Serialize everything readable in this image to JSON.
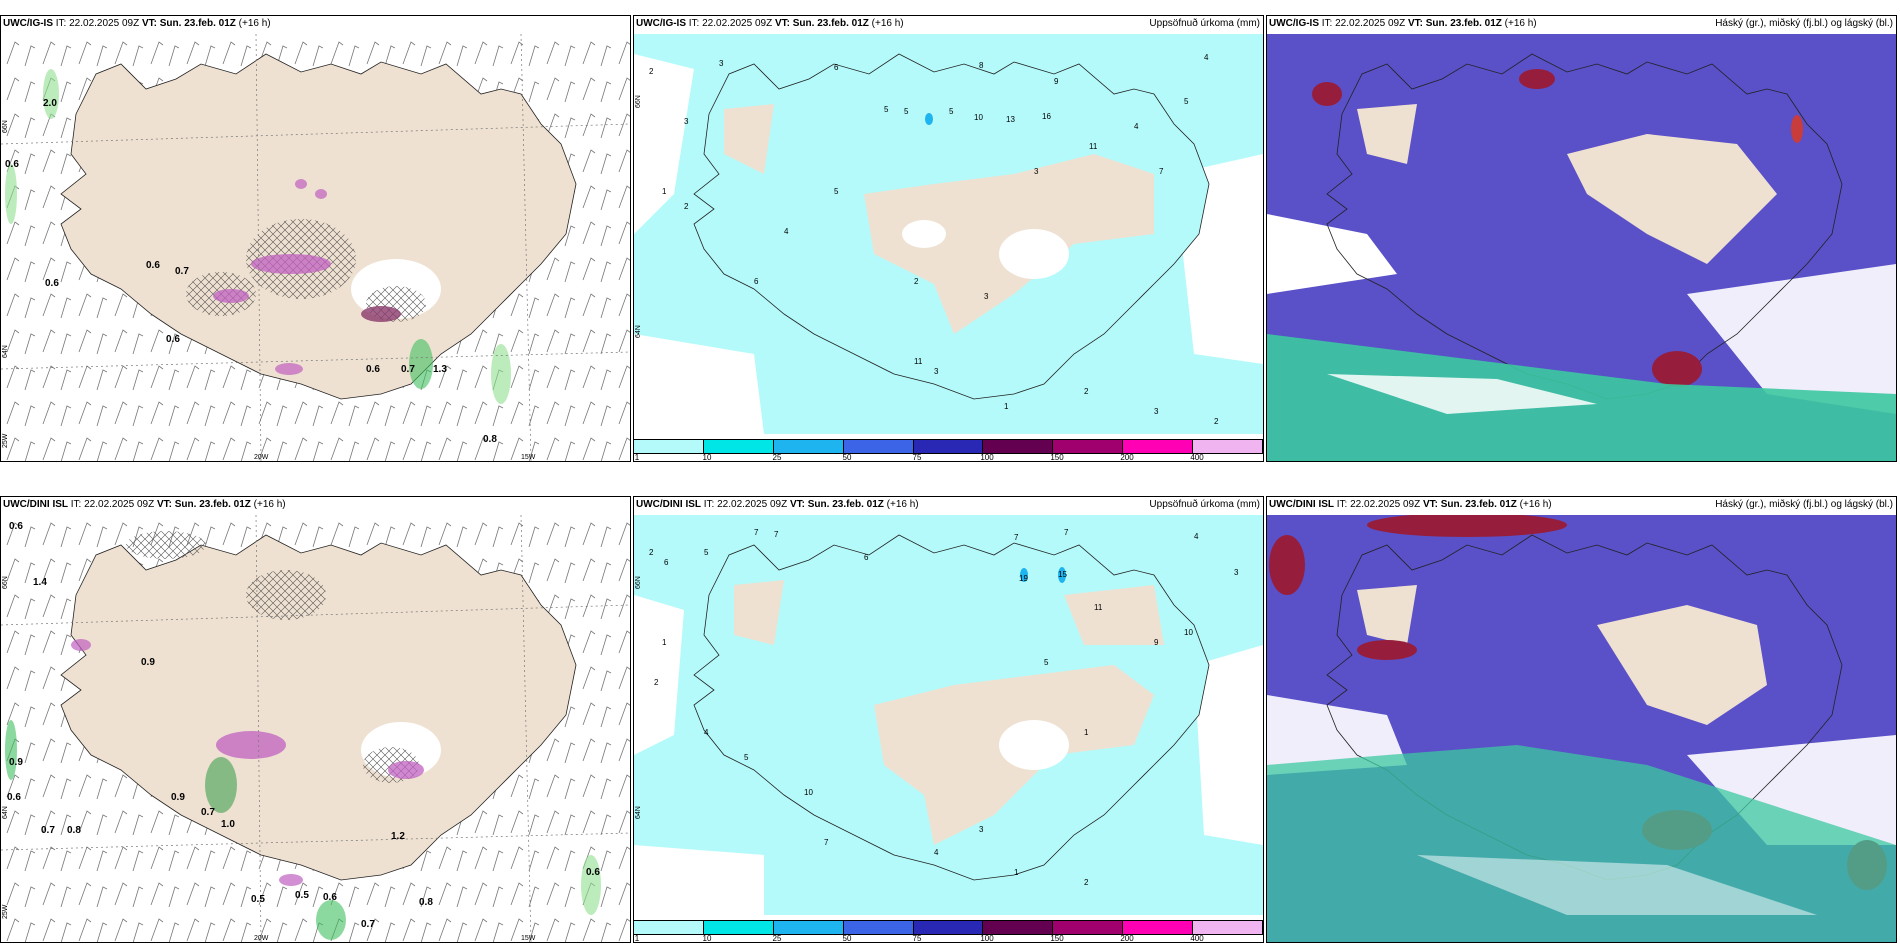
{
  "panels": [
    {
      "id": "ig-wind",
      "model": "UWC/IG-IS",
      "it_label": "IT:",
      "it": "22.02.2025 09Z",
      "vt_label": "VT:",
      "vt": "Sun. 23.feb. 01Z",
      "lead": "(+16 h)",
      "legend_title": "",
      "type": "wind"
    },
    {
      "id": "ig-precip",
      "model": "UWC/IG-IS",
      "it_label": "IT:",
      "it": "22.02.2025 09Z",
      "vt_label": "VT:",
      "vt": "Sun. 23.feb. 01Z",
      "lead": "(+16 h)",
      "legend_title": "Uppsöfnuð úrkoma (mm)",
      "type": "precip"
    },
    {
      "id": "ig-cloud",
      "model": "UWC/IG-IS",
      "it_label": "IT:",
      "it": "22.02.2025 09Z",
      "vt_label": "VT:",
      "vt": "Sun. 23.feb. 01Z",
      "lead": "(+16 h)",
      "legend_title": "Háský (gr.), miðský (fj.bl.) og lágský (bl.)",
      "type": "cloud"
    },
    {
      "id": "dini-wind",
      "model": "UWC/DINI ISL",
      "it_label": "IT:",
      "it": "22.02.2025 09Z",
      "vt_label": "VT:",
      "vt": "Sun. 23.feb. 01Z",
      "lead": "(+16 h)",
      "legend_title": "",
      "type": "wind"
    },
    {
      "id": "dini-precip",
      "model": "UWC/DINI ISL",
      "it_label": "IT:",
      "it": "22.02.2025 09Z",
      "vt_label": "VT:",
      "vt": "Sun. 23.feb. 01Z",
      "lead": "(+16 h)",
      "legend_title": "Uppsöfnuð úrkoma (mm)",
      "type": "precip"
    },
    {
      "id": "dini-cloud",
      "model": "UWC/DINI ISL",
      "it_label": "IT:",
      "it": "22.02.2025 09Z",
      "vt_label": "VT:",
      "vt": "Sun. 23.feb. 01Z",
      "lead": "(+16 h)",
      "legend_title": "Háský (gr.), miðský (fj.bl.) og lágský (bl.)",
      "type": "cloud"
    }
  ],
  "lat_labels": {
    "n66": "66N",
    "n64": "64N",
    "w25": "25W",
    "w20": "20W",
    "w15": "15W"
  },
  "colorbar": {
    "colors": [
      "#b4fafa",
      "#00e6e6",
      "#1eb4f0",
      "#3c64e6",
      "#2828b4",
      "#640050",
      "#a0006e",
      "#ff00b4",
      "#f0b4f0"
    ],
    "ticks": [
      "1",
      "10",
      "25",
      "50",
      "75",
      "100",
      "150",
      "200",
      "400"
    ]
  },
  "wind_labels_ig": [
    "2.0",
    "0.6",
    "0.6",
    "0.7",
    "0.6",
    "0.6",
    "0.6",
    "0.7",
    "1.3",
    "0.8"
  ],
  "wind_labels_dini": [
    "0.6",
    "1.4",
    "0.9",
    "0.9",
    "0.6",
    "0.9",
    "0.7",
    "0.7",
    "0.8",
    "1.2",
    "0.5",
    "0.5",
    "0.6",
    "0.8",
    "0.7",
    "0.6",
    "1.0"
  ],
  "precip_nums_ig": [
    "2",
    "3",
    "6",
    "8",
    "4",
    "3",
    "5",
    "5",
    "5",
    "10",
    "13",
    "16",
    "9",
    "11",
    "5",
    "4",
    "3",
    "1",
    "2",
    "7",
    "5",
    "4",
    "6",
    "2",
    "3",
    "11",
    "3",
    "1",
    "2",
    "2",
    "3"
  ],
  "precip_nums_dini": [
    "2",
    "6",
    "5",
    "7",
    "7",
    "6",
    "7",
    "7",
    "19",
    "15",
    "4",
    "3",
    "11",
    "5",
    "9",
    "10",
    "1",
    "1",
    "2",
    "4",
    "5",
    "10",
    "7",
    "3",
    "4",
    "1",
    "2"
  ],
  "colors": {
    "land": "#efe1d1",
    "sea": "#ffffff",
    "precip_light": "#b4fafa",
    "cloud_mid": "#5a50c8",
    "cloud_high": "#961e3c",
    "cloud_low": "#3cc8a0"
  }
}
